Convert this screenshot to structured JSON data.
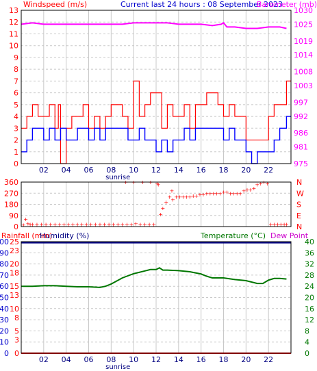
{
  "header": {
    "left_label": "Windspeed (m/s)",
    "center_label": "Current last 24 hours : 08 September 2023",
    "right_label": "Barometer (mb)"
  },
  "colors": {
    "wind_gust": "#ff0000",
    "wind_avg": "#0000ff",
    "barometer": "#ff00ff",
    "direction": "#ff0000",
    "rain": "#ff0000",
    "humidity": "#000080",
    "temperature": "#007700",
    "dew": "#cc00cc",
    "grid": "#c8c8c8",
    "frame": "#000000",
    "day_bg": "#ffffff",
    "night_bg": "#ffffff"
  },
  "chart_data": [
    {
      "id": "wind-baro",
      "type": "line",
      "x_ticks": [
        "02",
        "04",
        "06",
        "08",
        "10",
        "12",
        "14",
        "16",
        "18",
        "20",
        "22"
      ],
      "x_tick_hours": [
        2,
        4,
        6,
        8,
        10,
        12,
        14,
        16,
        18,
        20,
        22
      ],
      "xlim": [
        0,
        24
      ],
      "annotation": "sunrise",
      "annotation_hour": 8.6,
      "left_axis": {
        "label": "Windspeed (m/s)",
        "ylim": [
          0,
          13
        ],
        "ticks": [
          0,
          1,
          2,
          3,
          4,
          5,
          6,
          7,
          8,
          9,
          10,
          11,
          12,
          13
        ]
      },
      "right_axis": {
        "label": "Barometer (mb)",
        "ylim": [
          975,
          1030
        ],
        "ticks": [
          975,
          981,
          986,
          992,
          997,
          1003,
          1008,
          1014,
          1019,
          1025,
          1030
        ]
      },
      "series": [
        {
          "name": "Windspeed gust",
          "axis": "left",
          "x": [
            0,
            0.5,
            1,
            1.5,
            2,
            2.5,
            3,
            3.3,
            3.5,
            4,
            4.5,
            5,
            5.5,
            6,
            6.5,
            7,
            7.5,
            8,
            8.5,
            9,
            9.5,
            10,
            10.5,
            11,
            11.5,
            12,
            12.5,
            13,
            13.5,
            14,
            14.5,
            15,
            15.5,
            16,
            16.5,
            17,
            17.5,
            18,
            18.5,
            19,
            19.5,
            20,
            20.5,
            21,
            21.5,
            22,
            22.5,
            23,
            23.3,
            23.6
          ],
          "values": [
            3,
            4,
            5,
            4,
            4,
            5,
            3,
            5,
            0,
            3,
            4,
            4,
            5,
            3,
            4,
            3,
            4,
            5,
            5,
            4,
            3,
            7,
            4,
            5,
            6,
            6,
            3,
            5,
            4,
            4,
            5,
            3,
            5,
            5,
            6,
            6,
            5,
            4,
            5,
            4,
            4,
            2,
            2,
            2,
            2,
            4,
            5,
            5,
            5,
            7
          ]
        },
        {
          "name": "Windspeed average",
          "axis": "left",
          "x": [
            0,
            0.5,
            1,
            1.5,
            2,
            2.5,
            3,
            3.5,
            4,
            4.5,
            5,
            5.5,
            6,
            6.5,
            7,
            7.5,
            8,
            8.5,
            9,
            9.5,
            10,
            10.5,
            11,
            11.5,
            12,
            12.5,
            13,
            13.5,
            14,
            14.5,
            15,
            15.5,
            16,
            16.5,
            17,
            17.5,
            18,
            18.5,
            19,
            19.5,
            20,
            20.5,
            21,
            21.5,
            22,
            22.5,
            23,
            23.3,
            23.6
          ],
          "values": [
            1,
            2,
            3,
            3,
            2,
            3,
            2,
            3,
            2,
            2,
            3,
            3,
            2,
            3,
            2,
            3,
            3,
            3,
            3,
            2,
            2,
            3,
            2,
            2,
            1,
            2,
            1,
            2,
            2,
            3,
            2,
            3,
            3,
            3,
            3,
            3,
            2,
            3,
            2,
            2,
            1,
            0,
            1,
            1,
            1,
            2,
            3,
            3,
            4
          ]
        },
        {
          "name": "Barometer",
          "axis": "right",
          "x": [
            0,
            1,
            2,
            3,
            4,
            5,
            6,
            7,
            8,
            9,
            10,
            11,
            12,
            13,
            14,
            15,
            16,
            17,
            17.8,
            18,
            18.3,
            19,
            20,
            21,
            22,
            23,
            23.6
          ],
          "values": [
            1025,
            1025.5,
            1025,
            1025,
            1025,
            1025,
            1025,
            1025,
            1025,
            1025,
            1025.5,
            1025.5,
            1025.5,
            1025.5,
            1025,
            1025,
            1025,
            1024.5,
            1025,
            1025.5,
            1024,
            1024,
            1023.5,
            1023.5,
            1024,
            1024,
            1023.5
          ]
        }
      ]
    },
    {
      "id": "wind-direction",
      "type": "scatter",
      "x_ticks": [],
      "xlim": [
        0,
        24
      ],
      "left_axis": {
        "ylim": [
          0,
          360
        ],
        "ticks": [
          0,
          90,
          180,
          270,
          360
        ],
        "tick_labels": [
          "0",
          "90",
          "180",
          "270",
          "360"
        ]
      },
      "right_axis": {
        "ylim": [
          0,
          360
        ],
        "ticks": [
          0,
          90,
          180,
          270,
          360
        ],
        "tick_labels": [
          "N",
          "E",
          "S",
          "W",
          "N"
        ]
      },
      "series": [
        {
          "name": "Wind direction",
          "x": [
            0.2,
            0.4,
            0.6,
            0.8,
            1,
            1.4,
            1.8,
            2.2,
            2.6,
            3,
            3.4,
            3.8,
            4.2,
            4.6,
            5,
            5.4,
            5.8,
            6.2,
            6.6,
            7,
            7.4,
            7.8,
            8.2,
            8.6,
            9,
            9.4,
            9.8,
            10.2,
            10.6,
            11,
            11.4,
            11.8,
            12.2,
            12.6,
            12.9,
            13.2,
            13.5,
            13.8,
            14.1,
            14.4,
            14.7,
            15,
            15.3,
            15.6,
            15.9,
            16.2,
            16.5,
            16.8,
            17.1,
            17.4,
            17.7,
            18,
            18.3,
            18.6,
            18.9,
            19.2,
            19.5,
            19.8,
            20.1,
            20.4,
            20.7,
            21,
            21.3,
            21.6,
            21.9,
            22.2,
            22.5,
            22.8,
            23.1,
            23.4,
            23.6,
            9.3,
            10,
            10.8,
            11.5,
            12.1,
            12.4,
            13.4
          ],
          "values": [
            15,
            60,
            25,
            20,
            20,
            20,
            20,
            20,
            20,
            20,
            20,
            20,
            20,
            20,
            20,
            20,
            20,
            20,
            20,
            20,
            20,
            20,
            20,
            20,
            20,
            20,
            20,
            25,
            20,
            20,
            20,
            20,
            340,
            150,
            200,
            240,
            220,
            240,
            240,
            240,
            240,
            240,
            250,
            250,
            260,
            260,
            270,
            270,
            270,
            270,
            270,
            280,
            280,
            270,
            270,
            270,
            270,
            290,
            300,
            300,
            310,
            340,
            350,
            360,
            350,
            20,
            20,
            20,
            20,
            20,
            20,
            360,
            360,
            360,
            360,
            350,
            100,
            290
          ]
        }
      ]
    },
    {
      "id": "rain-humidity-temperature",
      "type": "line",
      "x_ticks": [
        "02",
        "04",
        "06",
        "08",
        "10",
        "12",
        "14",
        "16",
        "18",
        "20",
        "22"
      ],
      "x_tick_hours": [
        2,
        4,
        6,
        8,
        10,
        12,
        14,
        16,
        18,
        20,
        22
      ],
      "xlim": [
        0,
        24
      ],
      "annotation": "sunrise",
      "annotation_hour": 8.6,
      "left_axis_humidity": {
        "label": "Humidity (%)",
        "ylim": [
          0,
          100
        ],
        "ticks": [
          0,
          10,
          20,
          30,
          40,
          50,
          60,
          70,
          80,
          90,
          100
        ]
      },
      "left_axis_rain": {
        "label": "Rainfall (mm)",
        "ylim": [
          0,
          25
        ],
        "ticks": [
          0,
          3,
          5,
          8,
          10,
          13,
          15,
          18,
          20,
          23,
          25
        ],
        "tick_labels": [
          "0",
          "3",
          "5",
          "8",
          "10",
          "13",
          "15",
          "18",
          "20",
          "23",
          "25"
        ]
      },
      "right_axis": {
        "label": "Temperature (°C)",
        "ylim": [
          0,
          40
        ],
        "ticks": [
          0,
          4,
          8,
          12,
          16,
          20,
          24,
          28,
          32,
          36,
          40
        ]
      },
      "extra_legend": "Dew Point",
      "series": [
        {
          "name": "Humidity",
          "axis": "humidity",
          "x": [
            0,
            24
          ],
          "values": [
            99,
            99
          ]
        },
        {
          "name": "Rainfall",
          "axis": "rain",
          "x": [
            0,
            24
          ],
          "values": [
            0,
            0
          ]
        },
        {
          "name": "Temperature",
          "axis": "temperature",
          "x": [
            0,
            1,
            2,
            3,
            4,
            5,
            6,
            7,
            7.5,
            8,
            9,
            10,
            11,
            11.5,
            12,
            12.3,
            12.6,
            13,
            14,
            15,
            16,
            16.5,
            17,
            18,
            19,
            20,
            21,
            21.5,
            22,
            22.5,
            23,
            23.6
          ],
          "values": [
            24,
            24,
            24.2,
            24.2,
            24,
            23.8,
            23.8,
            23.6,
            24,
            24.8,
            27,
            28.5,
            29.5,
            30,
            30,
            30.6,
            29.8,
            29.8,
            29.6,
            29.2,
            28.4,
            27.6,
            27,
            27,
            26.4,
            26,
            25,
            25,
            26.2,
            26.8,
            26.8,
            26.6
          ]
        }
      ]
    }
  ]
}
